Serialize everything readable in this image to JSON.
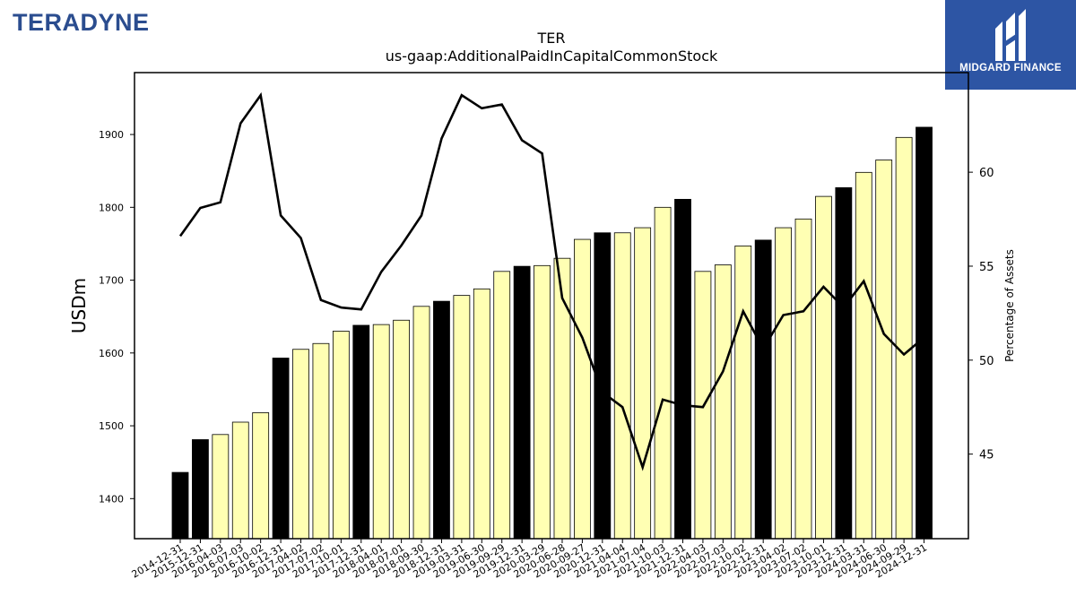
{
  "logos": {
    "left_text": "TERADYNE",
    "right_text": "MIDGARD FINANCE",
    "right_icon": "midgard-logo-icon"
  },
  "chart_data": {
    "type": "bar",
    "title": "TER",
    "subtitle": "us-gaap:AdditionalPaidInCapitalCommonStock",
    "ylabel": "USDm",
    "y2label": "Percentage of Assets",
    "ylim": [
      1345,
      1985
    ],
    "y2lim": [
      40.5,
      65.3
    ],
    "yticks": [
      1400,
      1500,
      1600,
      1700,
      1800,
      1900
    ],
    "y2ticks": [
      45,
      50,
      55,
      60
    ],
    "grid": false,
    "categories": [
      "2014-12-31",
      "2015-12-31",
      "2016-04-03",
      "2016-07-03",
      "2016-10-02",
      "2016-12-31",
      "2017-04-02",
      "2017-07-02",
      "2017-10-01",
      "2017-12-31",
      "2018-04-01",
      "2018-07-01",
      "2018-09-30",
      "2018-12-31",
      "2019-03-31",
      "2019-06-30",
      "2019-09-29",
      "2019-12-31",
      "2020-03-29",
      "2020-06-28",
      "2020-09-27",
      "2020-12-31",
      "2021-04-04",
      "2021-07-04",
      "2021-10-03",
      "2021-12-31",
      "2022-04-03",
      "2022-07-03",
      "2022-10-02",
      "2022-12-31",
      "2023-04-02",
      "2023-07-02",
      "2023-10-01",
      "2023-12-31",
      "2024-03-31",
      "2024-06-30",
      "2024-09-29",
      "2024-12-31"
    ],
    "series": [
      {
        "type": "bar",
        "axis": "left",
        "values": [
          1436,
          1481,
          1488,
          1505,
          1518,
          1593,
          1605,
          1613,
          1630,
          1638,
          1639,
          1645,
          1664,
          1671,
          1679,
          1688,
          1712,
          1719,
          1720,
          1730,
          1756,
          1765,
          1765,
          1772,
          1800,
          1811,
          1712,
          1721,
          1747,
          1755,
          1772,
          1784,
          1815,
          1827,
          1848,
          1865,
          1896,
          1910
        ],
        "year_end_color": "#000000",
        "quarter_color": "#ffffb3"
      },
      {
        "type": "line",
        "axis": "right",
        "color": "#000000",
        "values": [
          56.6,
          58.1,
          58.4,
          62.6,
          64.1,
          57.7,
          56.5,
          53.2,
          52.8,
          52.7,
          54.7,
          56.1,
          57.7,
          61.8,
          64.1,
          63.4,
          63.6,
          61.7,
          61.0,
          53.3,
          51.2,
          48.3,
          47.5,
          44.3,
          47.9,
          47.6,
          47.5,
          49.4,
          52.6,
          50.6,
          52.4,
          52.6,
          53.9,
          52.8,
          54.2,
          51.4,
          50.3,
          51.2
        ]
      }
    ]
  }
}
